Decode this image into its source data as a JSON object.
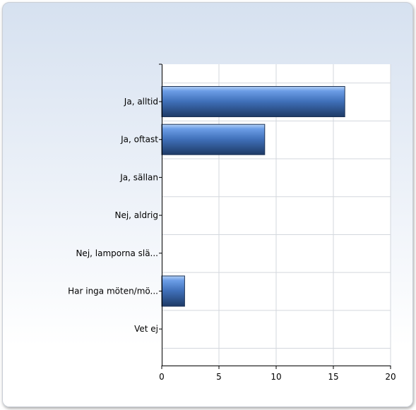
{
  "chart_data": {
    "type": "bar",
    "orientation": "horizontal",
    "categories": [
      "Ja, alltid",
      "Ja, oftast",
      "Ja, sällan",
      "Nej, aldrig",
      "Nej, lamporna slä...",
      "Har inga möten/mö...",
      "Vet ej"
    ],
    "values": [
      16,
      9,
      0,
      0,
      0,
      2,
      0
    ],
    "x_ticks": [
      "0",
      "5",
      "10",
      "15",
      "20"
    ],
    "xlim": [
      0,
      20
    ],
    "title": "",
    "xlabel": "",
    "ylabel": "",
    "grid": true,
    "bar_color": "#4a7fd0"
  }
}
